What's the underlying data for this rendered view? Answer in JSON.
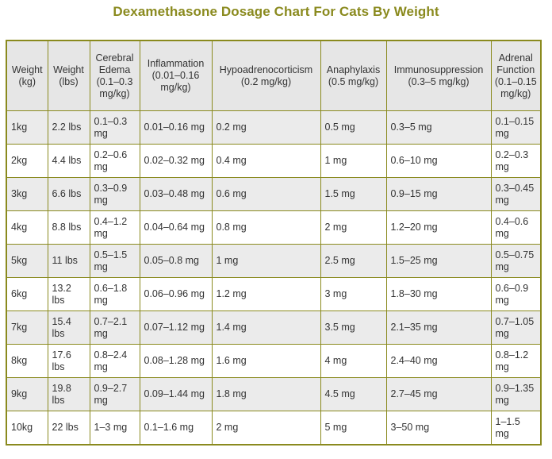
{
  "title": "Dexamethasone Dosage Chart For Cats By Weight",
  "headers": [
    "Weight (kg)",
    "Weight (lbs)",
    "Cerebral Edema (0.1–0.3 mg/kg)",
    "Inflammation (0.01–0.16 mg/kg)",
    "Hypoadrenocorticism (0.2 mg/kg)",
    "Anaphylaxis (0.5 mg/kg)",
    "Immunosuppression (0.3–5 mg/kg)",
    "Adrenal Function (0.1–0.15 mg/kg)"
  ],
  "rows": [
    [
      "1kg",
      "2.2 lbs",
      "0.1–0.3 mg",
      "0.01–0.16 mg",
      "0.2 mg",
      "0.5 mg",
      "0.3–5 mg",
      "0.1–0.15 mg"
    ],
    [
      "2kg",
      "4.4 lbs",
      "0.2–0.6 mg",
      "0.02–0.32 mg",
      "0.4 mg",
      "1 mg",
      "0.6–10 mg",
      "0.2–0.3 mg"
    ],
    [
      "3kg",
      "6.6 lbs",
      "0.3–0.9 mg",
      "0.03–0.48 mg",
      "0.6 mg",
      "1.5 mg",
      "0.9–15 mg",
      "0.3–0.45 mg"
    ],
    [
      "4kg",
      "8.8 lbs",
      "0.4–1.2 mg",
      "0.04–0.64 mg",
      "0.8 mg",
      "2 mg",
      "1.2–20 mg",
      "0.4–0.6 mg"
    ],
    [
      "5kg",
      "11 lbs",
      "0.5–1.5 mg",
      "0.05–0.8 mg",
      "1 mg",
      "2.5 mg",
      "1.5–25 mg",
      "0.5–0.75 mg"
    ],
    [
      "6kg",
      "13.2 lbs",
      "0.6–1.8 mg",
      "0.06–0.96 mg",
      "1.2 mg",
      "3 mg",
      "1.8–30 mg",
      "0.6–0.9 mg"
    ],
    [
      "7kg",
      "15.4 lbs",
      "0.7–2.1 mg",
      "0.07–1.12 mg",
      "1.4 mg",
      "3.5 mg",
      "2.1–35 mg",
      "0.7–1.05 mg"
    ],
    [
      "8kg",
      "17.6 lbs",
      "0.8–2.4 mg",
      "0.08–1.28 mg",
      "1.6 mg",
      "4 mg",
      "2.4–40 mg",
      "0.8–1.2 mg"
    ],
    [
      "9kg",
      "19.8 lbs",
      "0.9–2.7 mg",
      "0.09–1.44 mg",
      "1.8 mg",
      "4.5 mg",
      "2.7–45 mg",
      "0.9–1.35 mg"
    ],
    [
      "10kg",
      "22 lbs",
      "1–3 mg",
      "0.1–1.6 mg",
      "2 mg",
      "5 mg",
      "3–50 mg",
      "1–1.5 mg"
    ]
  ]
}
